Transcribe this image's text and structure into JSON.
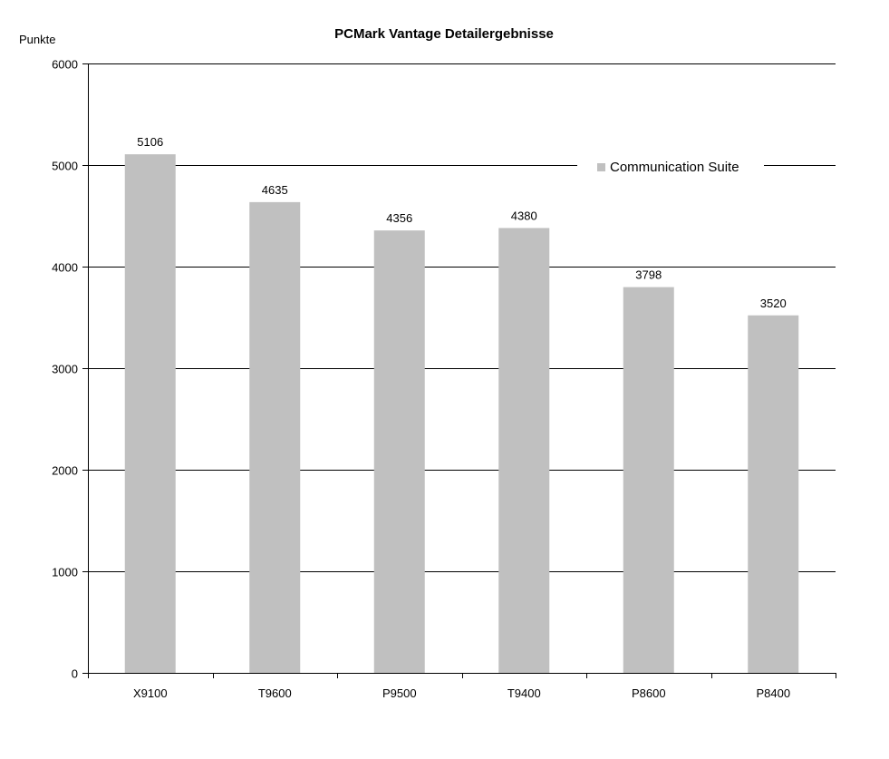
{
  "chart_data": {
    "type": "bar",
    "title": "PCMark Vantage Detailergebnisse",
    "ylabel": "Punkte",
    "xlabel": "",
    "ylim": [
      0,
      6000
    ],
    "yticks": [
      0,
      1000,
      2000,
      3000,
      4000,
      5000,
      6000
    ],
    "categories": [
      "X9100",
      "T9600",
      "P9500",
      "T9400",
      "P8600",
      "P8400"
    ],
    "series": [
      {
        "name": "Communication Suite",
        "values": [
          5106,
          4635,
          4356,
          4380,
          3798,
          3520
        ],
        "color": "#c0c0c0"
      }
    ],
    "grid": true,
    "legend_position": "top-right",
    "data_labels": true
  }
}
